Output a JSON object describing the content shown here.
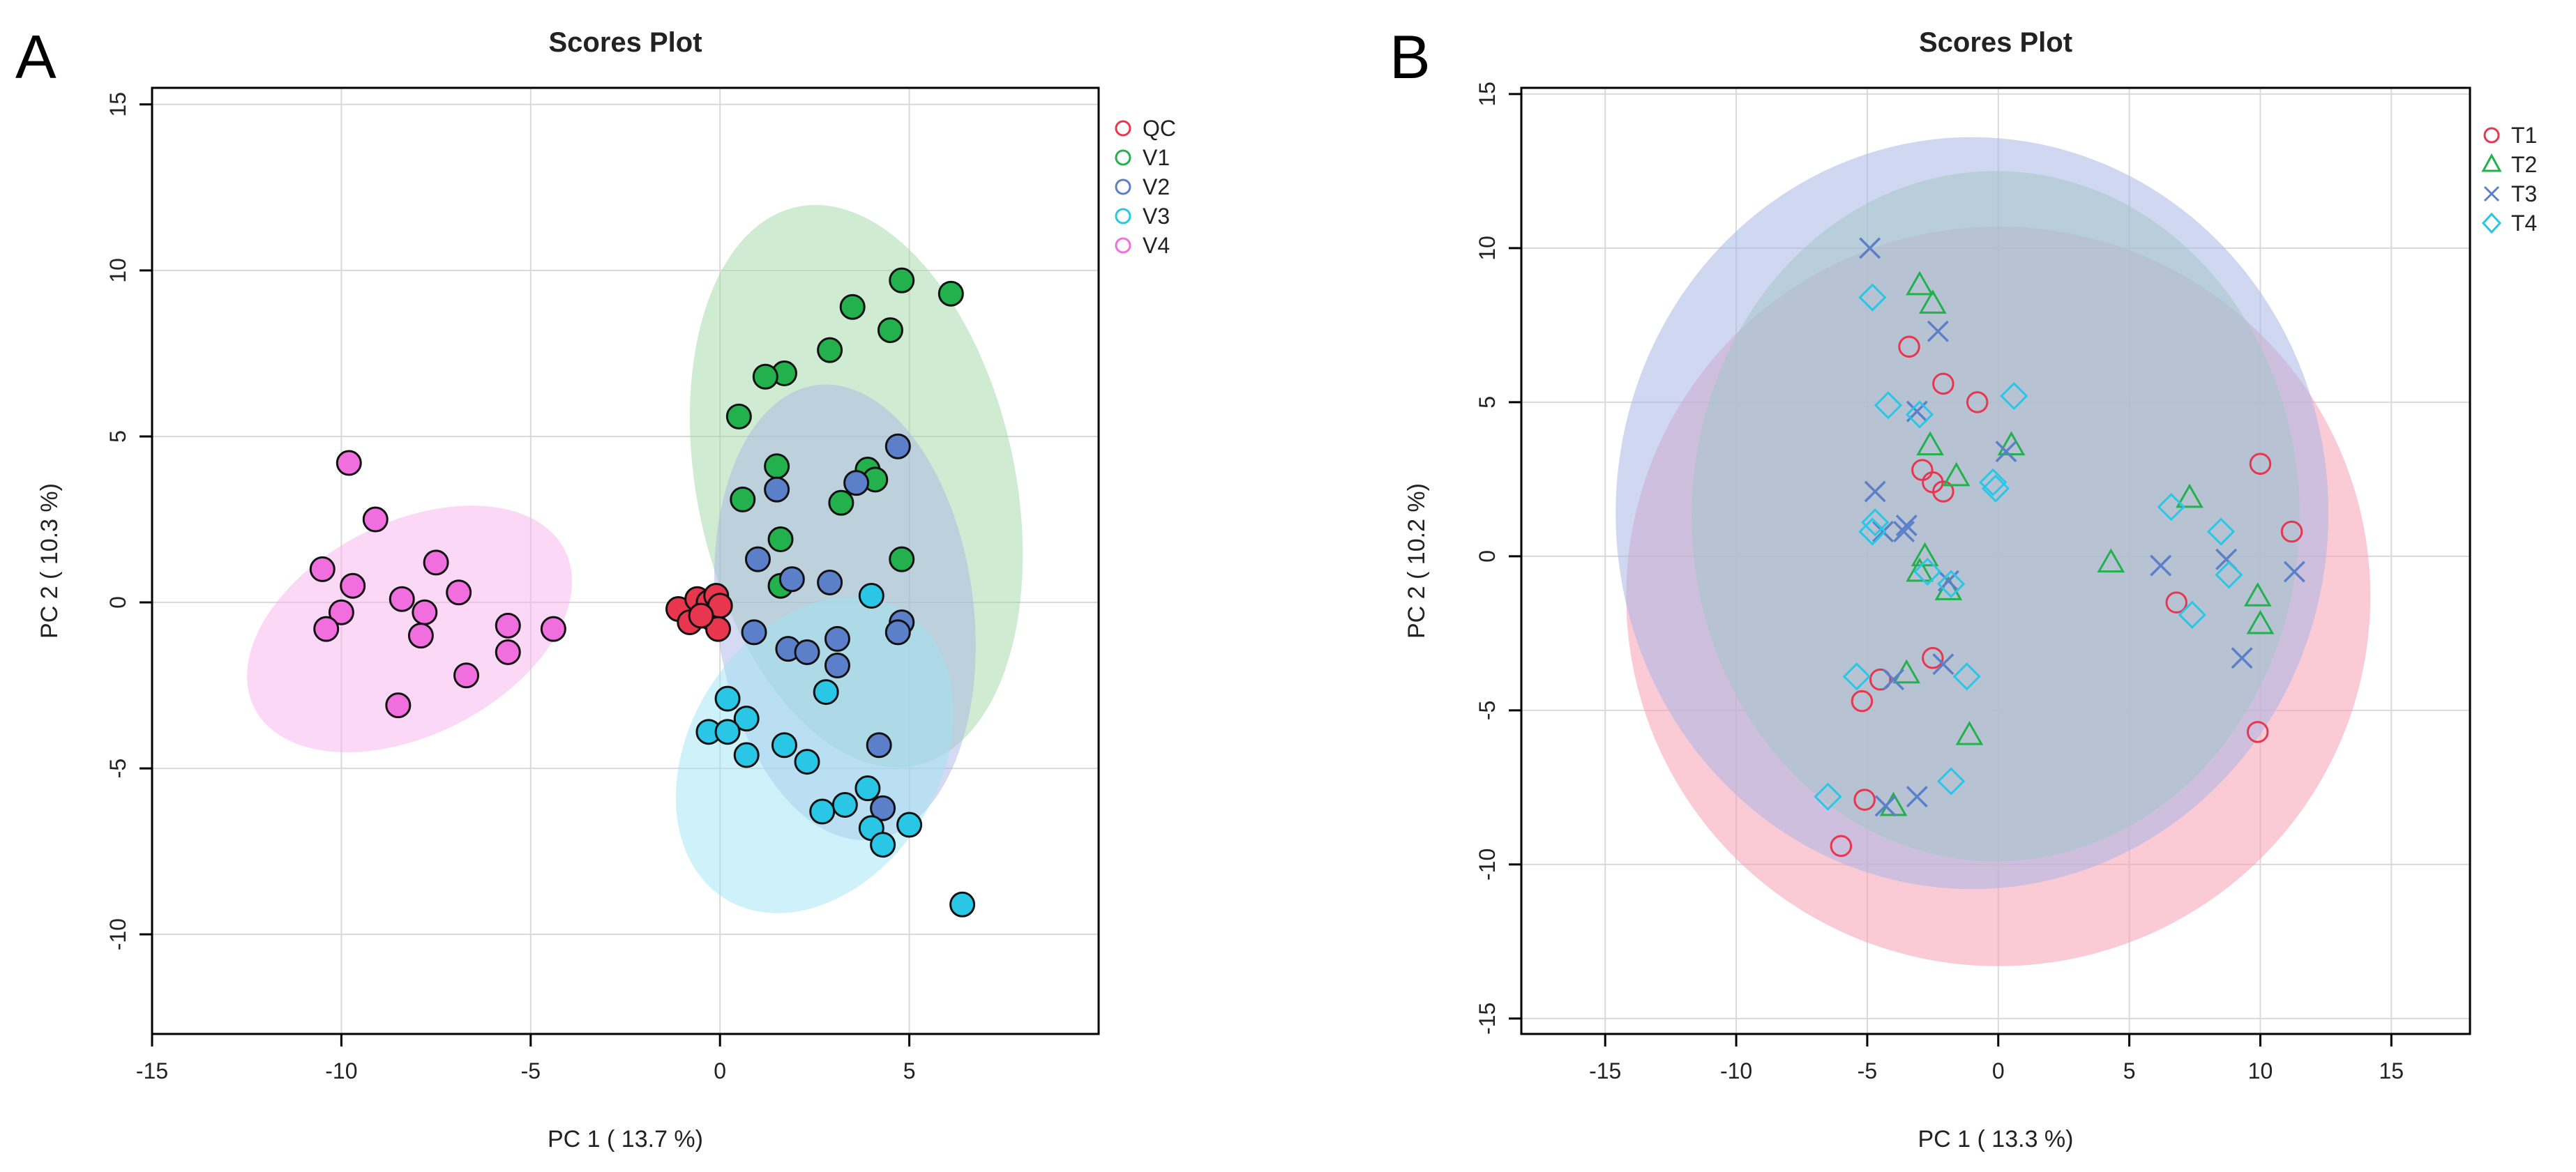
{
  "panel_letters": [
    "A",
    "B"
  ],
  "chart_data": [
    {
      "type": "scatter",
      "title": "Scores Plot",
      "xlabel": "PC 1 ( 13.7 %)",
      "ylabel": "PC 2 ( 10.3 %)",
      "xlim": [
        -15,
        10
      ],
      "ylim": [
        -13,
        15.5
      ],
      "xticks": [
        -15,
        -10,
        -5,
        0,
        5
      ],
      "yticks": [
        -10,
        -5,
        0,
        5,
        10,
        15
      ],
      "grid": true,
      "legend_position": "top-right",
      "groups": [
        {
          "name": "QC",
          "color": "#e8364f",
          "marker": "circle",
          "ellipse": null,
          "points": [
            [
              -1.1,
              -0.2
            ],
            [
              -0.8,
              -0.6
            ],
            [
              -0.6,
              0.1
            ],
            [
              -0.4,
              -0.3
            ],
            [
              -0.3,
              0.0
            ],
            [
              -0.2,
              -0.5
            ],
            [
              -0.1,
              0.2
            ],
            [
              0.0,
              -0.1
            ],
            [
              -0.05,
              -0.8
            ],
            [
              -0.5,
              -0.4
            ]
          ]
        },
        {
          "name": "V1",
          "color": "#22b14c",
          "marker": "circle",
          "ellipse": {
            "cx": 3.6,
            "cy": 3.5,
            "rx": 4.2,
            "ry": 8.6,
            "angle": -12,
            "color": "#9fd9a8"
          },
          "points": [
            [
              6.1,
              9.3
            ],
            [
              4.8,
              9.7
            ],
            [
              3.5,
              8.9
            ],
            [
              4.5,
              8.2
            ],
            [
              2.9,
              7.6
            ],
            [
              1.7,
              6.9
            ],
            [
              1.2,
              6.8
            ],
            [
              0.5,
              5.6
            ],
            [
              1.5,
              4.1
            ],
            [
              3.9,
              4.0
            ],
            [
              4.1,
              3.7
            ],
            [
              0.6,
              3.1
            ],
            [
              3.2,
              3.0
            ],
            [
              1.6,
              1.9
            ],
            [
              4.8,
              1.3
            ],
            [
              1.6,
              0.5
            ]
          ]
        },
        {
          "name": "V2",
          "color": "#5b7fc9",
          "marker": "circle",
          "ellipse": {
            "cx": 3.3,
            "cy": -0.3,
            "rx": 3.4,
            "ry": 6.9,
            "angle": -7,
            "color": "#a9b6e6"
          },
          "points": [
            [
              4.7,
              4.7
            ],
            [
              3.6,
              3.6
            ],
            [
              1.5,
              3.4
            ],
            [
              1.0,
              1.3
            ],
            [
              1.9,
              0.7
            ],
            [
              2.9,
              0.6
            ],
            [
              4.8,
              -0.6
            ],
            [
              4.7,
              -0.9
            ],
            [
              0.9,
              -0.9
            ],
            [
              1.8,
              -1.4
            ],
            [
              2.3,
              -1.5
            ],
            [
              3.1,
              -1.1
            ],
            [
              3.1,
              -1.9
            ],
            [
              4.2,
              -4.3
            ],
            [
              4.3,
              -6.2
            ]
          ]
        },
        {
          "name": "V3",
          "color": "#29c6e6",
          "marker": "circle",
          "ellipse": {
            "cx": 2.5,
            "cy": -4.6,
            "rx": 3.3,
            "ry": 5.1,
            "angle": 32,
            "color": "#9fe4f3"
          },
          "points": [
            [
              4.0,
              0.2
            ],
            [
              2.8,
              -2.7
            ],
            [
              0.2,
              -2.9
            ],
            [
              0.7,
              -3.5
            ],
            [
              -0.3,
              -3.9
            ],
            [
              0.2,
              -3.9
            ],
            [
              1.7,
              -4.3
            ],
            [
              0.7,
              -4.6
            ],
            [
              2.3,
              -4.8
            ],
            [
              3.9,
              -5.6
            ],
            [
              3.3,
              -6.1
            ],
            [
              2.7,
              -6.3
            ],
            [
              4.0,
              -6.8
            ],
            [
              5.0,
              -6.7
            ],
            [
              4.3,
              -7.3
            ],
            [
              6.4,
              -9.1
            ]
          ]
        },
        {
          "name": "V4",
          "color": "#f06ede",
          "marker": "circle",
          "ellipse": {
            "cx": -8.2,
            "cy": -0.8,
            "rx": 4.6,
            "ry": 3.2,
            "angle": -27,
            "color": "#f7b1ee"
          },
          "points": [
            [
              -9.8,
              4.2
            ],
            [
              -9.1,
              2.5
            ],
            [
              -10.5,
              1.0
            ],
            [
              -7.5,
              1.2
            ],
            [
              -9.7,
              0.5
            ],
            [
              -8.4,
              0.1
            ],
            [
              -6.9,
              0.3
            ],
            [
              -7.8,
              -0.3
            ],
            [
              -10.0,
              -0.3
            ],
            [
              -10.4,
              -0.8
            ],
            [
              -7.9,
              -1.0
            ],
            [
              -5.6,
              -0.7
            ],
            [
              -4.4,
              -0.8
            ],
            [
              -5.6,
              -1.5
            ],
            [
              -6.7,
              -2.2
            ],
            [
              -8.5,
              -3.1
            ]
          ]
        }
      ]
    },
    {
      "type": "scatter",
      "title": "Scores Plot",
      "xlabel": "PC 1 ( 13.3 %)",
      "ylabel": "PC 2 ( 10.2 %)",
      "xlim": [
        -18.2,
        18
      ],
      "ylim": [
        -15.5,
        15.2
      ],
      "xticks": [
        -15,
        -10,
        -5,
        0,
        5,
        10,
        15
      ],
      "yticks": [
        -15,
        -10,
        -5,
        0,
        5,
        10,
        15
      ],
      "grid": true,
      "legend_position": "top-right",
      "groups": [
        {
          "name": "T1",
          "color": "#e8364f",
          "marker": "circle",
          "ellipse": {
            "cx": 0.0,
            "cy": -1.3,
            "rx": 14.2,
            "ry": 12.0,
            "angle": 0,
            "color": "#f5a0b2"
          },
          "points": [
            [
              -3.4,
              6.8
            ],
            [
              -2.1,
              5.6
            ],
            [
              -0.8,
              5.0
            ],
            [
              -2.9,
              2.8
            ],
            [
              -2.5,
              2.4
            ],
            [
              -2.1,
              2.1
            ],
            [
              10.0,
              3.0
            ],
            [
              11.2,
              0.8
            ],
            [
              6.8,
              -1.5
            ],
            [
              -2.5,
              -3.3
            ],
            [
              -4.5,
              -4.0
            ],
            [
              -5.2,
              -4.7
            ],
            [
              9.9,
              -5.7
            ],
            [
              -5.1,
              -7.9
            ],
            [
              -6.0,
              -9.4
            ]
          ]
        },
        {
          "name": "T2",
          "color": "#22b14c",
          "marker": "triangle",
          "ellipse": {
            "cx": -0.1,
            "cy": 1.3,
            "rx": 11.6,
            "ry": 11.2,
            "angle": 0,
            "color": "#9fd9a8"
          },
          "points": [
            [
              -3.0,
              8.8
            ],
            [
              -2.5,
              8.2
            ],
            [
              -2.6,
              3.6
            ],
            [
              -1.6,
              2.6
            ],
            [
              0.5,
              3.6
            ],
            [
              7.3,
              1.9
            ],
            [
              -2.8,
              0.0
            ],
            [
              -3.0,
              -0.5
            ],
            [
              -1.9,
              -1.1
            ],
            [
              4.3,
              -0.2
            ],
            [
              9.9,
              -1.3
            ],
            [
              10.0,
              -2.2
            ],
            [
              -3.5,
              -3.8
            ],
            [
              -1.1,
              -5.8
            ],
            [
              -4.0,
              -8.1
            ]
          ]
        },
        {
          "name": "T3",
          "color": "#5b7fc9",
          "marker": "x",
          "ellipse": {
            "cx": -1.0,
            "cy": 1.4,
            "rx": 13.6,
            "ry": 12.2,
            "angle": 0,
            "color": "#a9b6e6"
          },
          "points": [
            [
              -4.9,
              10.0
            ],
            [
              -2.3,
              7.3
            ],
            [
              -3.1,
              4.7
            ],
            [
              0.3,
              3.4
            ],
            [
              -4.7,
              2.1
            ],
            [
              -3.5,
              1.0
            ],
            [
              -3.6,
              0.8
            ],
            [
              -4.4,
              0.8
            ],
            [
              -1.9,
              -0.8
            ],
            [
              6.2,
              -0.3
            ],
            [
              8.7,
              -0.1
            ],
            [
              11.3,
              -0.5
            ],
            [
              9.3,
              -3.3
            ],
            [
              -2.1,
              -3.5
            ],
            [
              -4.0,
              -4.0
            ],
            [
              -3.1,
              -7.8
            ],
            [
              -4.3,
              -8.1
            ]
          ]
        },
        {
          "name": "T4",
          "color": "#29c6e6",
          "marker": "diamond",
          "ellipse": null,
          "points": [
            [
              -4.8,
              8.4
            ],
            [
              -4.2,
              4.9
            ],
            [
              -3.0,
              4.6
            ],
            [
              0.6,
              5.2
            ],
            [
              -0.2,
              2.4
            ],
            [
              -0.1,
              2.2
            ],
            [
              6.6,
              1.6
            ],
            [
              -4.7,
              1.1
            ],
            [
              -4.8,
              0.8
            ],
            [
              -2.7,
              -0.5
            ],
            [
              8.5,
              0.8
            ],
            [
              8.8,
              -0.6
            ],
            [
              7.4,
              -1.9
            ],
            [
              -1.8,
              -0.9
            ],
            [
              -5.4,
              -3.9
            ],
            [
              -1.2,
              -3.9
            ],
            [
              -1.8,
              -7.3
            ],
            [
              -6.5,
              -7.8
            ]
          ]
        }
      ]
    }
  ]
}
